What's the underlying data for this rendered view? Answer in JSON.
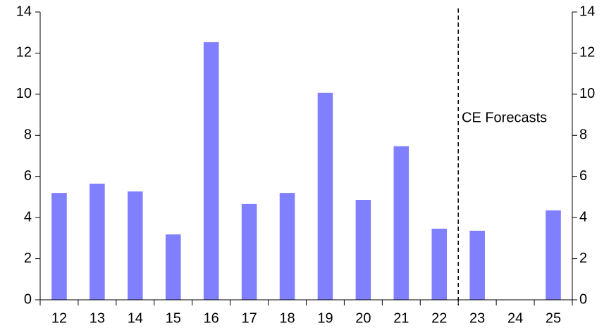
{
  "chart_data": {
    "type": "bar",
    "categories": [
      "12",
      "13",
      "14",
      "15",
      "16",
      "17",
      "18",
      "19",
      "20",
      "21",
      "22",
      "23",
      "24",
      "25"
    ],
    "values": [
      5.2,
      5.65,
      5.27,
      3.18,
      12.53,
      4.66,
      5.2,
      10.07,
      4.86,
      7.47,
      3.46,
      3.36,
      null,
      4.35
    ],
    "color": "#8080ff",
    "ylim": [
      0,
      14
    ],
    "yticks": [
      0,
      2,
      4,
      6,
      8,
      10,
      12,
      14
    ],
    "y2lim": [
      0,
      14
    ],
    "y2ticks": [
      0,
      2,
      4,
      6,
      8,
      10,
      12,
      14
    ],
    "annotation": "CE Forecasts",
    "grid": false
  }
}
